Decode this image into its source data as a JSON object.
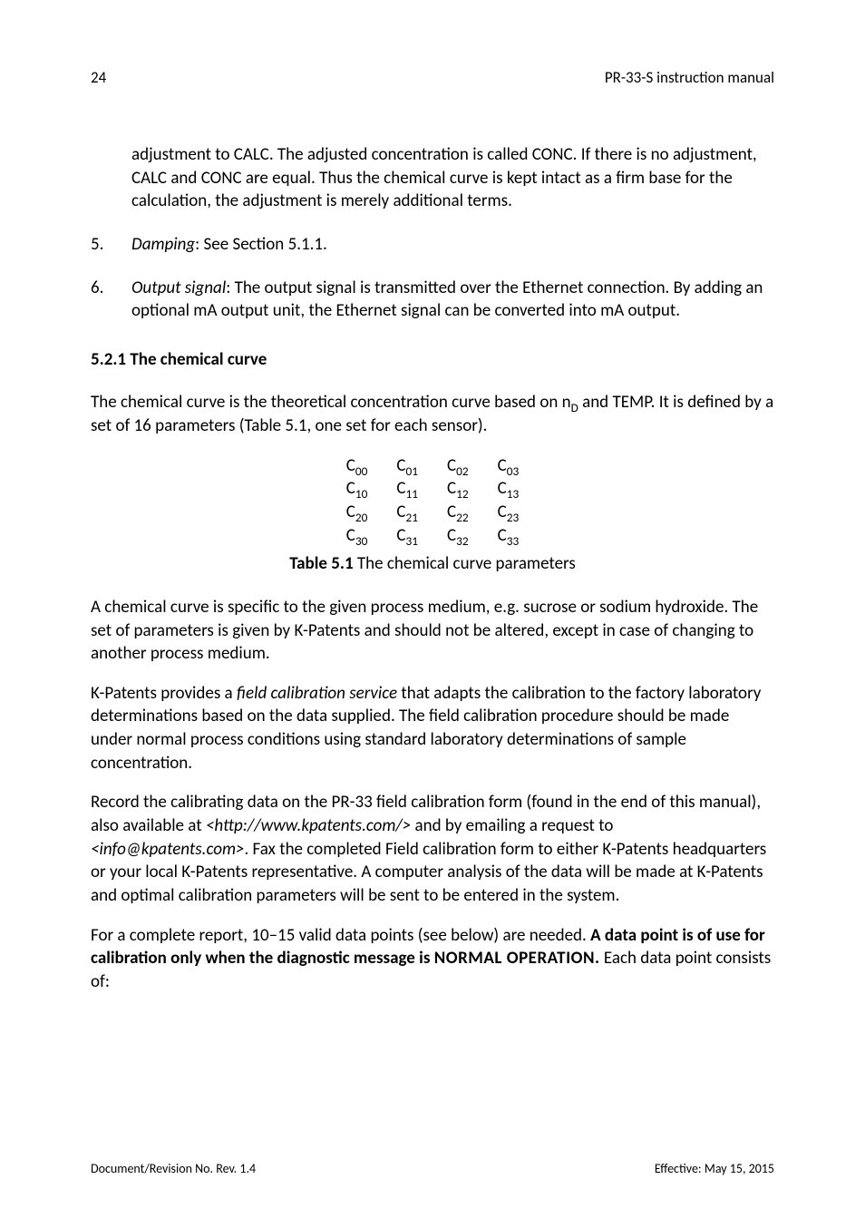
{
  "header": {
    "page_number": "24",
    "doc_title": "PR-33-S instruction manual"
  },
  "continuation_para": "adjustment to CALC. The adjusted concentration is called CONC. If there is no adjustment, CALC and CONC are equal. Thus the chemical curve is kept intact as a firm base for the calculation, the adjustment is merely additional terms.",
  "list": {
    "item5": {
      "num": "5.",
      "label": "Damping",
      "rest": ": See Section 5.1.1."
    },
    "item6": {
      "num": "6.",
      "label": "Output signal",
      "rest": ": The output signal is transmitted over the Ethernet connection. By adding an optional mA output unit, the Ethernet signal can be converted into mA output."
    }
  },
  "section": {
    "heading": "5.2.1   The chemical curve",
    "intro_a": "The chemical curve is the theoretical concentration curve based on n",
    "intro_sub": "D",
    "intro_b": " and TEMP. It is defined by a set of 16 parameters (Table 5.1, one set for each sensor)."
  },
  "table_params": [
    [
      "C",
      "00",
      "C",
      "01",
      "C",
      "02",
      "C",
      "03"
    ],
    [
      "C",
      "10",
      "C",
      "11",
      "C",
      "12",
      "C",
      "13"
    ],
    [
      "C",
      "20",
      "C",
      "21",
      "C",
      "22",
      "C",
      "23"
    ],
    [
      "C",
      "30",
      "C",
      "31",
      "C",
      "32",
      "C",
      "33"
    ]
  ],
  "table_caption": {
    "label": "Table 5.1",
    "text": "   The chemical curve parameters"
  },
  "p1": "A chemical curve is specific to the given process medium, e.g. sucrose or sodium hydroxide. The set of parameters is given by K-Patents and should not be altered, except in case of changing to another process medium.",
  "p2a": "K-Patents provides a ",
  "p2_it": "field calibration service",
  "p2b": " that adapts the calibration to the factory laboratory determinations based on the data supplied. The field calibration procedure should be made under normal process conditions using standard laboratory determinations of sample concentration.",
  "p3a": "Record the calibrating data on the PR-33 field calibration form (found in the end of this manual), also available at ",
  "p3_link1": "<http://www.kpatents.com/>",
  "p3b": " and by emailing a request to",
  "p3_link2": "<info@kpatents.com>",
  "p3c": ". Fax the completed Field calibration form to either K-Patents headquarters or your local K-Patents representative. A computer analysis of the data will be made at K-Patents and optimal calibration parameters will be sent to be entered in the system.",
  "p4a": "For a complete report, 10–15 valid data points (see below) are needed. ",
  "p4_bold1": "A data point is of use for calibration only when the diagnostic message is ",
  "p4_sc": "NORMAL OPERATION.",
  "p4b": " Each data point consists of:",
  "footer": {
    "left": "Document/Revision No. Rev. 1.4",
    "right": "Effective: May 15, 2015"
  }
}
